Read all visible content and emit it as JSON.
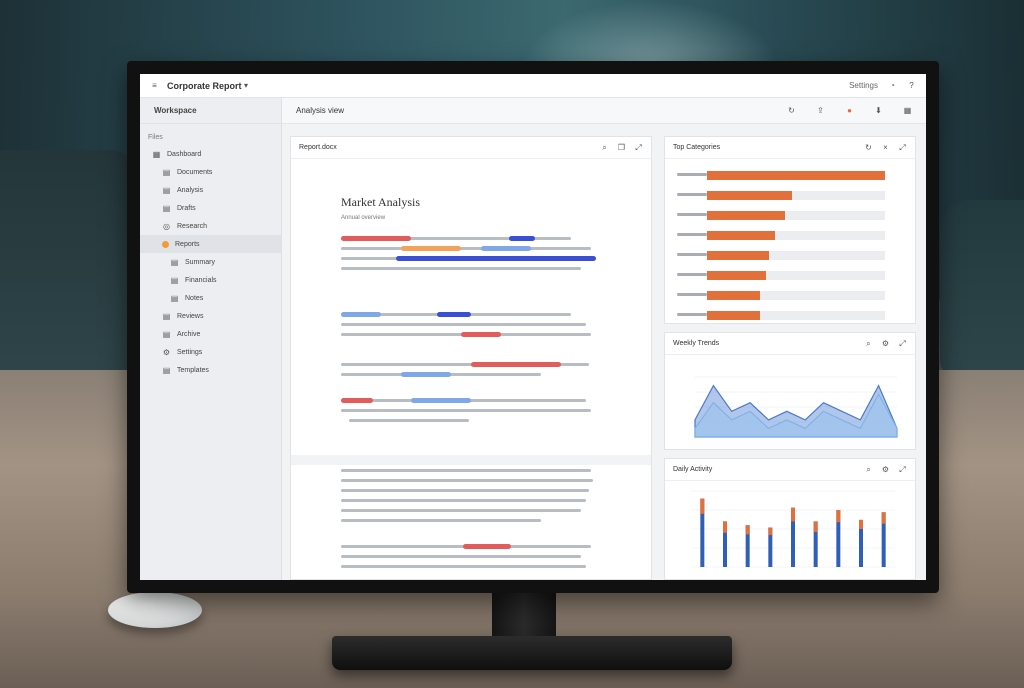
{
  "topbar": {
    "title": "Corporate Report",
    "right_text": "Settings",
    "icons": [
      "menu-icon",
      "notifications-icon",
      "help-icon"
    ]
  },
  "sidebar": {
    "brand": "Workspace",
    "section": "Files",
    "items": [
      {
        "label": "Dashboard",
        "icon": "grid-icon",
        "level": 0
      },
      {
        "label": "Documents",
        "icon": "doc-icon",
        "level": 1
      },
      {
        "label": "Analysis",
        "icon": "doc-icon",
        "level": 1
      },
      {
        "label": "Drafts",
        "icon": "doc-icon",
        "level": 1
      },
      {
        "label": "Research",
        "icon": "folder-icon",
        "level": 1
      },
      {
        "label": "Reports",
        "icon": "dot",
        "level": 1,
        "active": true
      },
      {
        "label": "Summary",
        "icon": "doc-icon",
        "level": 2
      },
      {
        "label": "Financials",
        "icon": "doc-icon",
        "level": 2
      },
      {
        "label": "Notes",
        "icon": "doc-icon",
        "level": 2
      },
      {
        "label": "Reviews",
        "icon": "doc-icon",
        "level": 1
      },
      {
        "label": "Archive",
        "icon": "doc-icon",
        "level": 1
      },
      {
        "label": "Settings",
        "icon": "gear-icon",
        "level": 1
      },
      {
        "label": "Templates",
        "icon": "doc-icon",
        "level": 1
      }
    ]
  },
  "main": {
    "header": "Analysis view"
  },
  "document": {
    "panel_title": "Report.docx",
    "title": "Market Analysis",
    "subtitle": "Annual overview"
  },
  "panels": {
    "bars_title": "Top Categories",
    "area_title": "Weekly Trends",
    "columns_title": "Daily Activity"
  },
  "chart_data": [
    {
      "type": "bar",
      "orientation": "horizontal",
      "values": [
        100,
        48,
        44,
        38,
        35,
        33,
        30,
        30
      ],
      "xlim": [
        0,
        100
      ]
    },
    {
      "type": "area",
      "series": [
        {
          "values": [
            2,
            6,
            3,
            4,
            2,
            3,
            2,
            4,
            3,
            2,
            6,
            1
          ]
        },
        {
          "values": [
            1,
            4,
            2,
            3,
            1,
            2,
            1,
            3,
            2,
            1,
            5,
            1
          ]
        }
      ]
    },
    {
      "type": "bar",
      "values": [
        90,
        60,
        55,
        52,
        78,
        60,
        75,
        62,
        72
      ],
      "secondary": [
        20,
        15,
        12,
        10,
        18,
        14,
        16,
        12,
        15
      ]
    }
  ]
}
